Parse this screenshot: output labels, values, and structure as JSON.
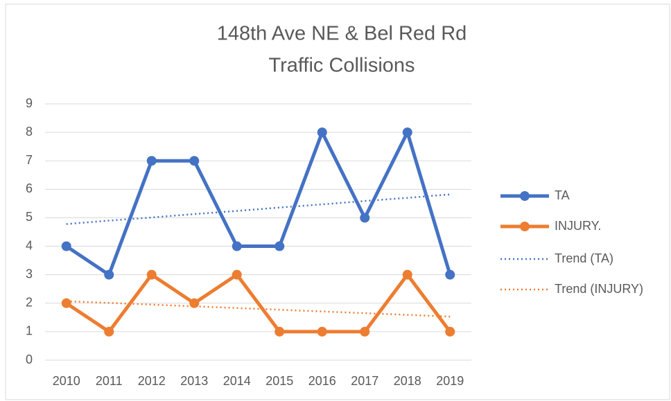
{
  "chart_data": {
    "type": "line",
    "title": [
      "148th Ave NE & Bel Red Rd",
      "Traffic Collisions"
    ],
    "categories": [
      "2010",
      "2011",
      "2012",
      "2013",
      "2014",
      "2015",
      "2016",
      "2017",
      "2018",
      "2019"
    ],
    "series": [
      {
        "name": "TA",
        "color": "#4472c4",
        "values": [
          4,
          3,
          7,
          7,
          4,
          4,
          8,
          5,
          8,
          3
        ],
        "style": "solid"
      },
      {
        "name": "INJURY.",
        "color": "#ed7d31",
        "values": [
          2,
          1,
          3,
          2,
          3,
          1,
          1,
          1,
          3,
          1
        ],
        "style": "solid"
      },
      {
        "name": "Trend (TA)",
        "color": "#4472c4",
        "values": [
          4.78,
          4.9,
          5.01,
          5.13,
          5.24,
          5.36,
          5.47,
          5.59,
          5.7,
          5.82
        ],
        "style": "dotted"
      },
      {
        "name": "Trend (INJURY)",
        "color": "#ed7d31",
        "values": [
          2.07,
          2.01,
          1.95,
          1.89,
          1.83,
          1.77,
          1.71,
          1.65,
          1.59,
          1.53
        ],
        "style": "dotted"
      }
    ],
    "ylim": [
      0,
      9
    ],
    "yticks": [
      0,
      1,
      2,
      3,
      4,
      5,
      6,
      7,
      8,
      9
    ],
    "grid": true,
    "legend": "right"
  }
}
